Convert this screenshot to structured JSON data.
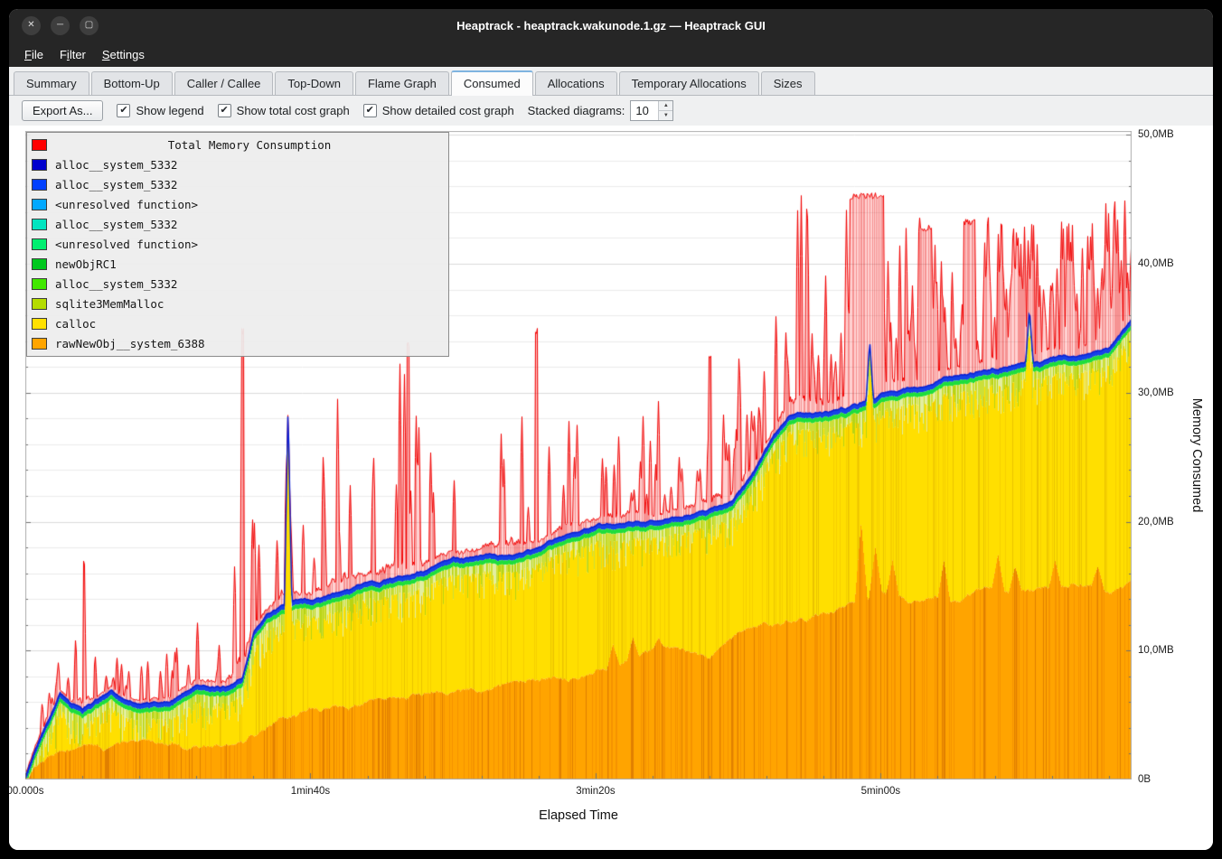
{
  "window": {
    "title": "Heaptrack - heaptrack.wakunode.1.gz — Heaptrack GUI",
    "controls": [
      {
        "name": "close",
        "glyph": "✕"
      },
      {
        "name": "minimize",
        "glyph": "─"
      },
      {
        "name": "maximize",
        "glyph": "▢"
      }
    ]
  },
  "menubar": {
    "items": [
      {
        "label": "File",
        "accel": 0
      },
      {
        "label": "Filter",
        "accel": 1
      },
      {
        "label": "Settings",
        "accel": 0
      }
    ]
  },
  "tabs": {
    "active": "Consumed",
    "items": [
      "Summary",
      "Bottom-Up",
      "Caller / Callee",
      "Top-Down",
      "Flame Graph",
      "Consumed",
      "Allocations",
      "Temporary Allocations",
      "Sizes"
    ]
  },
  "toolbar": {
    "export_label": "Export As...",
    "checkboxes": [
      {
        "label": "Show legend",
        "checked": true
      },
      {
        "label": "Show total cost graph",
        "checked": true
      },
      {
        "label": "Show detailed cost graph",
        "checked": true
      }
    ],
    "stacked_label": "Stacked diagrams:",
    "stacked_value": "10",
    "check_glyph": "✔",
    "spin_up_glyph": "▲",
    "spin_down_glyph": "▼"
  },
  "chart_data": {
    "type": "area",
    "stacked": true,
    "legend_title": "Total Memory Consumption",
    "legend_title_color": "#ff0000",
    "legend": [
      {
        "label": "alloc__system_5332",
        "color": "#0000cd"
      },
      {
        "label": "alloc__system_5332",
        "color": "#0040ff"
      },
      {
        "label": "<unresolved function>",
        "color": "#00a8ff"
      },
      {
        "label": "alloc__system_5332",
        "color": "#00e5c0"
      },
      {
        "label": "<unresolved function>",
        "color": "#00ef70"
      },
      {
        "label": "newObjRC1",
        "color": "#00c81e"
      },
      {
        "label": "alloc__system_5332",
        "color": "#41e800"
      },
      {
        "label": "sqlite3MemMalloc",
        "color": "#b4dc00"
      },
      {
        "label": "calloc",
        "color": "#ffe000"
      },
      {
        "label": "rawNewObj__system_6388",
        "color": "#ffa500"
      }
    ],
    "xlabel": "Elapsed Time",
    "ylabel": "Memory Consumed",
    "x_ticks": [
      {
        "t": 0,
        "label": "00.000s"
      },
      {
        "t": 100,
        "label": "1min40s"
      },
      {
        "t": 200,
        "label": "3min20s"
      },
      {
        "t": 300,
        "label": "5min00s"
      }
    ],
    "y_ticks": [
      {
        "mb": 0,
        "label": "0B"
      },
      {
        "mb": 10,
        "label": "10,0MB"
      },
      {
        "mb": 20,
        "label": "20,0MB"
      },
      {
        "mb": 30,
        "label": "30,0MB"
      },
      {
        "mb": 40,
        "label": "40,0MB"
      },
      {
        "mb": 50,
        "label": "50,0MB"
      }
    ],
    "duration_s": 388,
    "ylim_mb": [
      0,
      50.3
    ],
    "unit": "MB",
    "keyframes": {
      "t": [
        0,
        4,
        8,
        12,
        16,
        20,
        25,
        30,
        35,
        40,
        50,
        60,
        70,
        76,
        80,
        85,
        90,
        95,
        100,
        110,
        120,
        130,
        140,
        150,
        160,
        170,
        180,
        190,
        200,
        210,
        220,
        230,
        240,
        248,
        256,
        262,
        268,
        274,
        280,
        286,
        292,
        296,
        300,
        310,
        320,
        330,
        340,
        350,
        360,
        370,
        380,
        388
      ],
      "total_mb": [
        0.3,
        2.5,
        4.5,
        6.5,
        5.6,
        5.2,
        6.0,
        6.6,
        5.9,
        5.6,
        6.1,
        7.4,
        7.1,
        8.0,
        11.5,
        13.0,
        13.6,
        14.0,
        13.9,
        14.3,
        15.0,
        15.4,
        16.2,
        17.5,
        17.3,
        17.6,
        18.0,
        18.8,
        19.6,
        19.9,
        20.2,
        20.6,
        21.0,
        21.6,
        24.0,
        26.5,
        28.2,
        28.5,
        28.7,
        29.0,
        29.3,
        29.6,
        30.0,
        30.6,
        31.0,
        31.4,
        31.8,
        32.3,
        32.8,
        33.2,
        33.8,
        35.8
      ],
      "orange_mb": [
        0.1,
        0.8,
        1.3,
        1.6,
        1.8,
        2.0,
        2.1,
        2.2,
        2.3,
        2.4,
        2.6,
        3.0,
        3.3,
        3.5,
        4.0,
        4.6,
        5.0,
        5.0,
        5.1,
        5.3,
        5.5,
        5.8,
        6.1,
        6.4,
        6.6,
        6.9,
        7.2,
        7.6,
        8.2,
        9.0,
        9.8,
        9.5,
        8.8,
        10.5,
        11.5,
        11.8,
        12.1,
        12.3,
        12.6,
        12.9,
        13.2,
        13.6,
        14.0,
        13.6,
        14.0,
        14.0,
        14.4,
        14.0,
        14.4,
        14.8,
        14.6,
        15.3
      ],
      "red_peak_mb": [
        1.5,
        6,
        10,
        9,
        8,
        17,
        9,
        10,
        9,
        9,
        10,
        13,
        13,
        35,
        20,
        18,
        29,
        22,
        20,
        33,
        24,
        34,
        26,
        24,
        26,
        35,
        24,
        30,
        27,
        31,
        30,
        28,
        33,
        34,
        32,
        34,
        46,
        46,
        40,
        45,
        46,
        42,
        40,
        44,
        43,
        40,
        45,
        43,
        44,
        43,
        45,
        46
      ]
    },
    "blue_spikes": [
      {
        "t": 92,
        "mb": 29
      },
      {
        "t": 296,
        "mb": 34
      },
      {
        "t": 352,
        "mb": 36.5
      }
    ],
    "orange_spikes": [
      {
        "t": 206,
        "mb": 10.5
      },
      {
        "t": 213,
        "mb": 11
      },
      {
        "t": 222,
        "mb": 11
      },
      {
        "t": 293,
        "mb": 20
      },
      {
        "t": 298,
        "mb": 18
      },
      {
        "t": 304,
        "mb": 17
      },
      {
        "t": 322,
        "mb": 17
      },
      {
        "t": 341,
        "mb": 17.5
      },
      {
        "t": 347,
        "mb": 16.5
      },
      {
        "t": 361,
        "mb": 17
      },
      {
        "t": 376,
        "mb": 16.5
      }
    ],
    "red_blocks": [
      {
        "t0": 20,
        "t1": 20.8,
        "mb": 17
      },
      {
        "t0": 75.6,
        "t1": 76.6,
        "mb": 35
      },
      {
        "t0": 133.5,
        "t1": 134.5,
        "mb": 34
      },
      {
        "t0": 178.5,
        "t1": 179.5,
        "mb": 35
      },
      {
        "t0": 239.5,
        "t1": 240.5,
        "mb": 33
      },
      {
        "t0": 289,
        "t1": 301,
        "mb": 45.5
      },
      {
        "t0": 313,
        "t1": 317,
        "mb": 43
      },
      {
        "t0": 329,
        "t1": 333,
        "mb": 43.5
      }
    ],
    "bands_mb": {
      "blue": 0.38,
      "green": 0.34,
      "sqlite_max_comb": 2.3
    },
    "noise_seed": 1337
  }
}
